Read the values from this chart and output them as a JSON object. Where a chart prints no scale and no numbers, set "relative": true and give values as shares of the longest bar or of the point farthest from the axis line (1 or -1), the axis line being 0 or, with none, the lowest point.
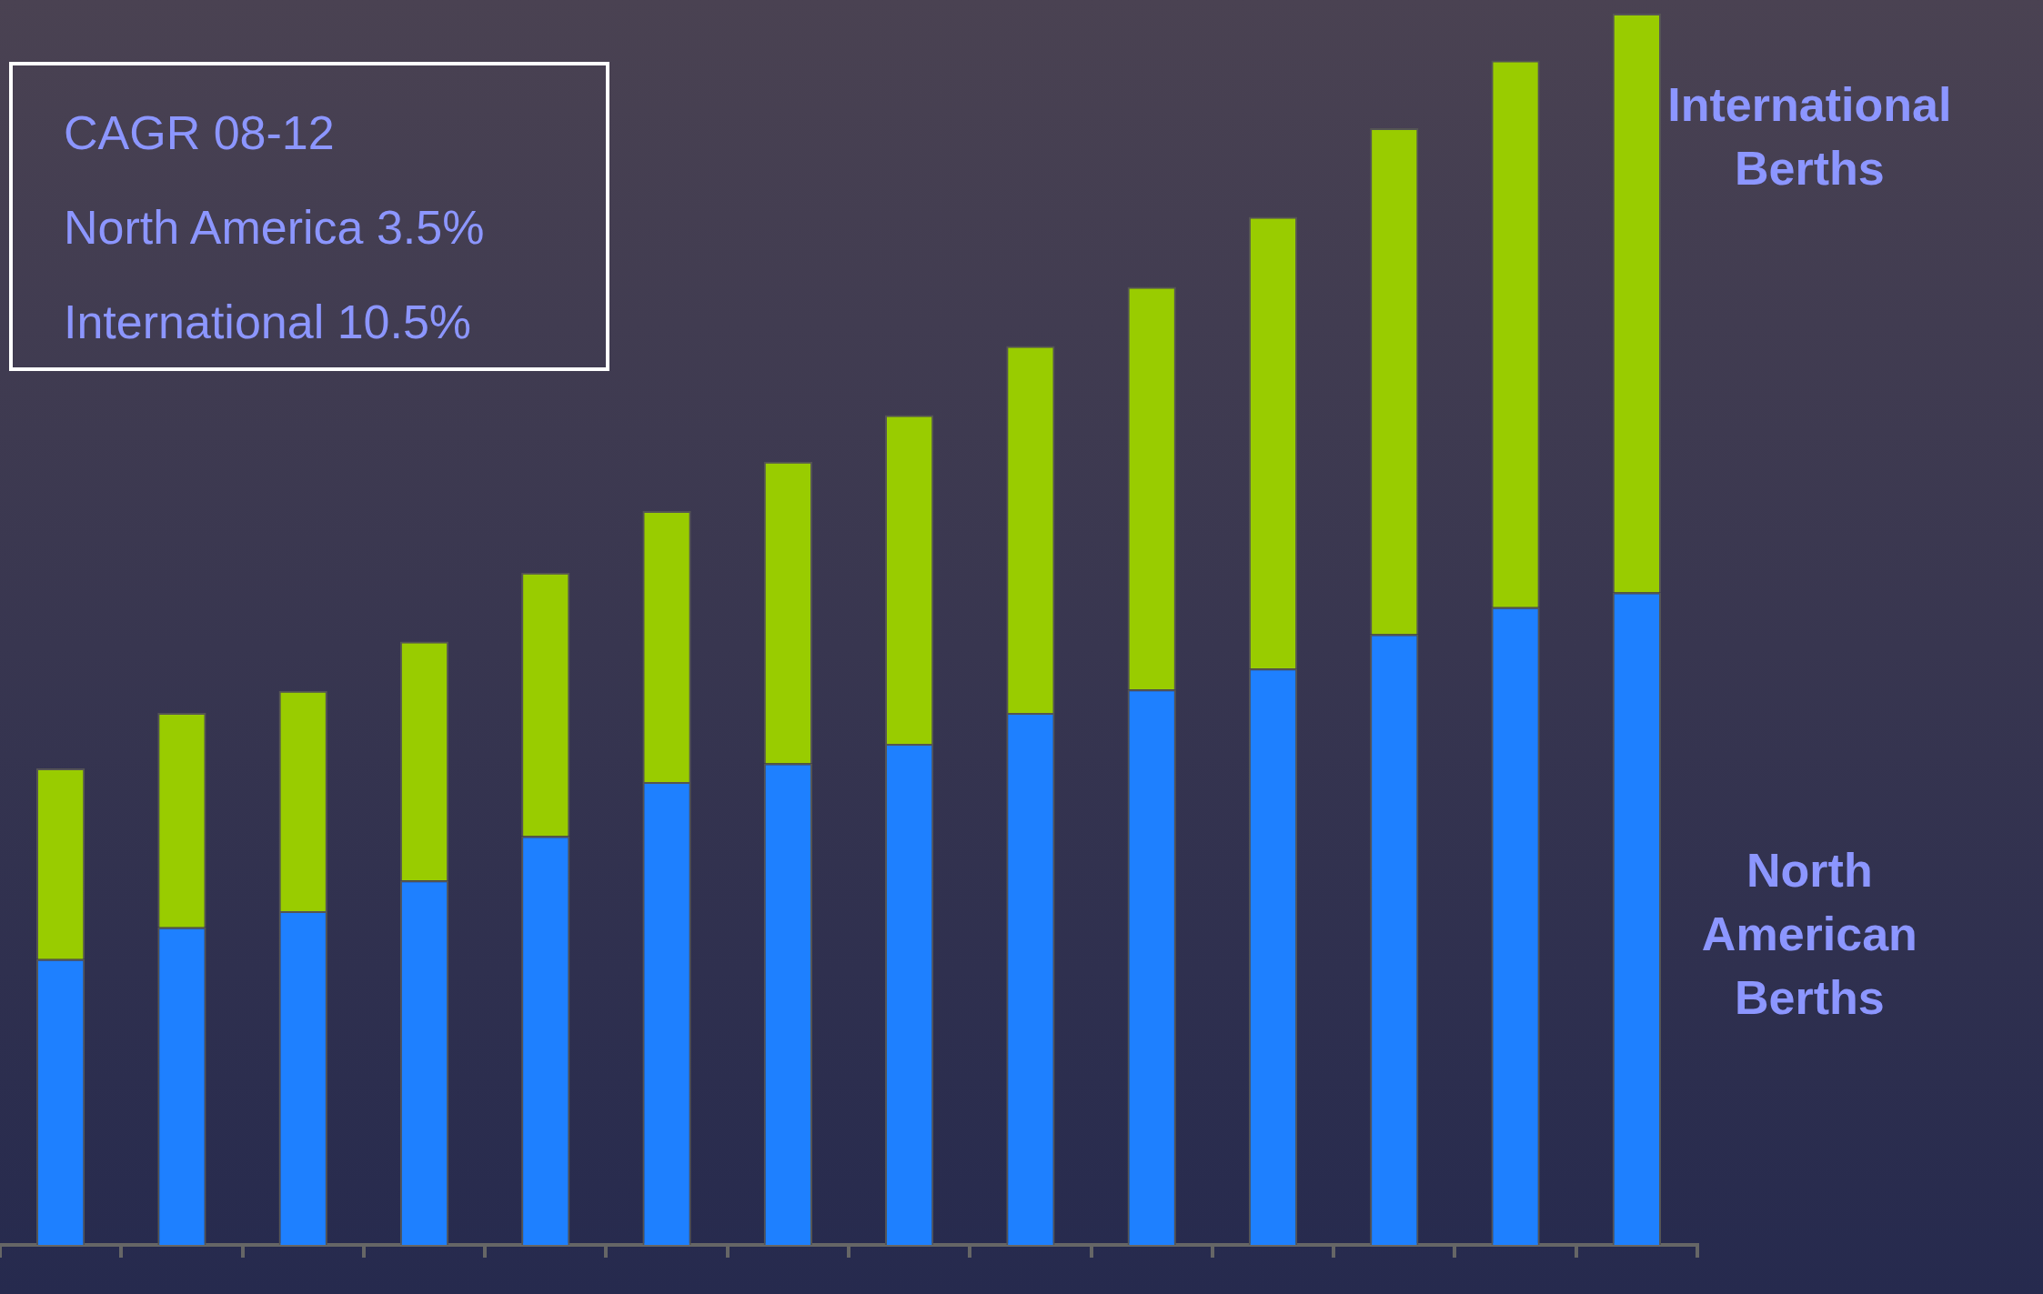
{
  "chart_data": {
    "type": "bar",
    "stacked": true,
    "relative": true,
    "grid": false,
    "legend": false,
    "categories": [
      null,
      null,
      null,
      null,
      null,
      null,
      null,
      null,
      null,
      null,
      null,
      null,
      null,
      null
    ],
    "series": [
      {
        "name": "North American Berths",
        "color": "#1e80ff",
        "values": [
          0.232,
          0.258,
          0.271,
          0.296,
          0.332,
          0.376,
          0.391,
          0.407,
          0.432,
          0.451,
          0.468,
          0.496,
          0.518,
          0.53
        ]
      },
      {
        "name": "International Berths",
        "color": "#99cc00",
        "values": [
          0.155,
          0.174,
          0.179,
          0.194,
          0.214,
          0.22,
          0.245,
          0.267,
          0.298,
          0.327,
          0.367,
          0.411,
          0.444,
          0.47
        ]
      }
    ],
    "annotations": [
      "CAGR 08-12",
      "North America 3.5%",
      "International 10.5%"
    ]
  }
}
